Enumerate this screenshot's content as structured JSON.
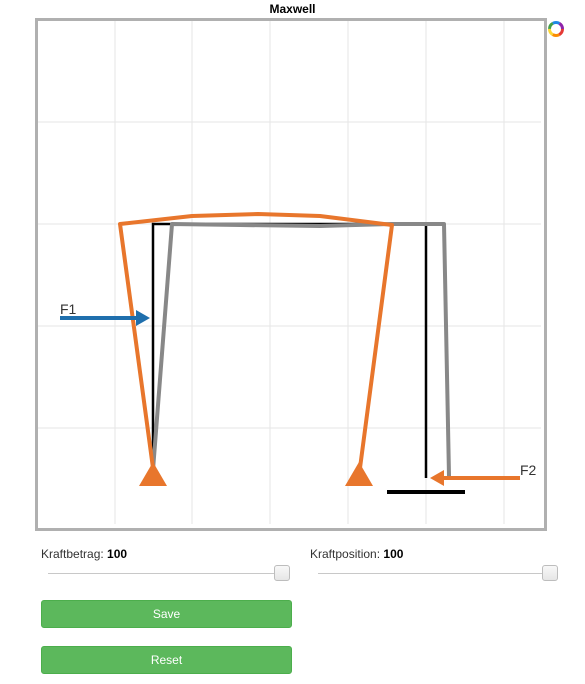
{
  "title": "Maxwell",
  "colors": {
    "frame": "#b0b0b0",
    "grid": "#e6e6e6",
    "structure": "#000000",
    "deformed_gray": "#888888",
    "deformed_orange": "#e8762c",
    "force_f1": "#1f6fad",
    "force_f2": "#e8762c",
    "button": "#5cb85c"
  },
  "forces": {
    "f1_label": "F1",
    "f2_label": "F2"
  },
  "sliders": {
    "kraftbetrag": {
      "label": "Kraftbetrag:",
      "value": "100",
      "fraction": 1.0
    },
    "kraftposition": {
      "label": "Kraftposition:",
      "value": "100",
      "fraction": 1.0
    }
  },
  "buttons": {
    "save": "Save",
    "reset": "Reset"
  },
  "logo": {
    "icon": "color-wheel-icon"
  }
}
